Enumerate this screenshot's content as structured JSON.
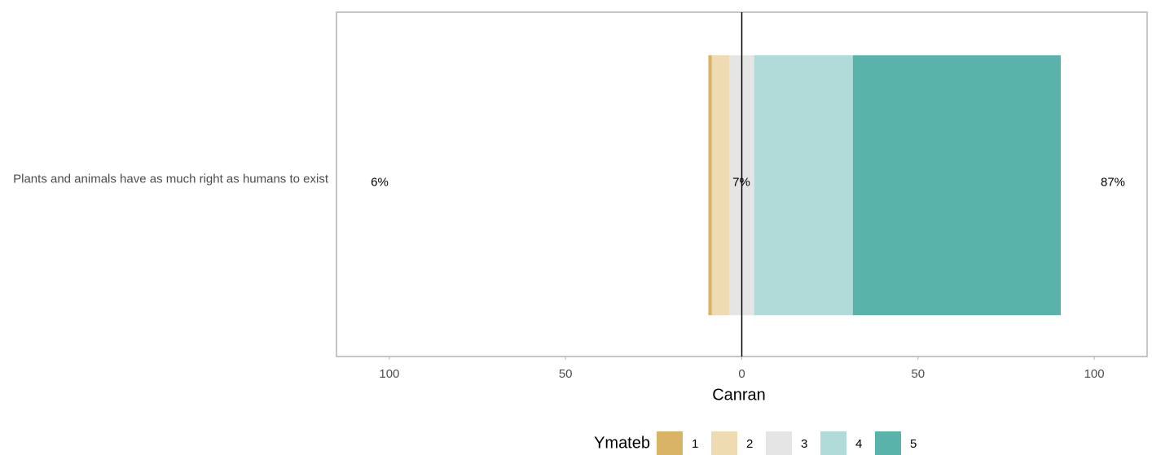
{
  "chart_data": {
    "type": "likert",
    "x_label": "Canran",
    "legend_title": "Ymateb",
    "categories": [
      "Plants and animals have as much right as humans to exist"
    ],
    "series": [
      {
        "name": "1",
        "color": "#d9b467",
        "values": [
          1
        ]
      },
      {
        "name": "2",
        "color": "#eedbb2",
        "values": [
          5
        ]
      },
      {
        "name": "3",
        "color": "#e5e5e5",
        "values": [
          7
        ]
      },
      {
        "name": "4",
        "color": "#b0dbd8",
        "values": [
          28
        ]
      },
      {
        "name": "5",
        "color": "#5ab3ab",
        "values": [
          59
        ]
      }
    ],
    "summary_labels": [
      {
        "value": 6,
        "label": "6%"
      },
      {
        "value": 7,
        "label": "7%"
      },
      {
        "value": 87,
        "label": "87%"
      }
    ],
    "xlim": [
      -115,
      115
    ],
    "xticks": [
      {
        "value": -100,
        "label": "100"
      },
      {
        "value": -50,
        "label": "50"
      },
      0,
      50,
      {
        "value": 100,
        "label": "100"
      }
    ],
    "grid": false,
    "legend_position": "bottom"
  }
}
